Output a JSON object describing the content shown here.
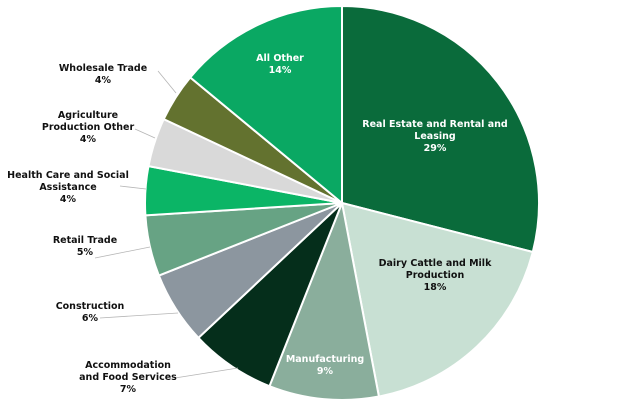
{
  "chart_data": {
    "type": "pie",
    "start_angle_deg": 0,
    "direction": "clockwise",
    "slices": [
      {
        "name": "Real Estate and Rental and Leasing",
        "label_lines": [
          "Real Estate and Rental and",
          "Leasing"
        ],
        "value": 29,
        "value_label": "29%",
        "color": "#0a6b3b",
        "label_color": "#ffffff",
        "label_position": "inside"
      },
      {
        "name": "Dairy Cattle and Milk Production",
        "label_lines": [
          "Dairy Cattle and Milk",
          "Production"
        ],
        "value": 18,
        "value_label": "18%",
        "color": "#c8e0d3",
        "label_color": "#111111",
        "label_position": "inside"
      },
      {
        "name": "Manufacturing",
        "label_lines": [
          "Manufacturing"
        ],
        "value": 9,
        "value_label": "9%",
        "color": "#8aae9c",
        "label_color": "#ffffff",
        "label_position": "inside"
      },
      {
        "name": "Accommodation and Food Services",
        "label_lines": [
          "Accommodation",
          "and Food Services"
        ],
        "value": 7,
        "value_label": "7%",
        "color": "#052e1b",
        "label_color": "#111111",
        "label_position": "outside"
      },
      {
        "name": "Construction",
        "label_lines": [
          "Construction"
        ],
        "value": 6,
        "value_label": "6%",
        "color": "#8c969f",
        "label_color": "#111111",
        "label_position": "outside"
      },
      {
        "name": "Retail Trade",
        "label_lines": [
          "Retail Trade"
        ],
        "value": 5,
        "value_label": "5%",
        "color": "#67a384",
        "label_color": "#111111",
        "label_position": "outside"
      },
      {
        "name": "Health Care and Social Assistance",
        "label_lines": [
          "Health Care and Social",
          "Assistance"
        ],
        "value": 4,
        "value_label": "4%",
        "color": "#0bb566",
        "label_color": "#111111",
        "label_position": "outside"
      },
      {
        "name": "Agriculture Production Other",
        "label_lines": [
          "Agriculture",
          "Production Other"
        ],
        "value": 4,
        "value_label": "4%",
        "color": "#d9d9d9",
        "label_color": "#111111",
        "label_position": "outside"
      },
      {
        "name": "Wholesale Trade",
        "label_lines": [
          "Wholesale Trade"
        ],
        "value": 4,
        "value_label": "4%",
        "color": "#63722f",
        "label_color": "#111111",
        "label_position": "outside"
      },
      {
        "name": "All Other",
        "label_lines": [
          "All Other"
        ],
        "value": 14,
        "value_label": "14%",
        "color": "#0aa863",
        "label_color": "#ffffff",
        "label_position": "inside"
      }
    ]
  }
}
